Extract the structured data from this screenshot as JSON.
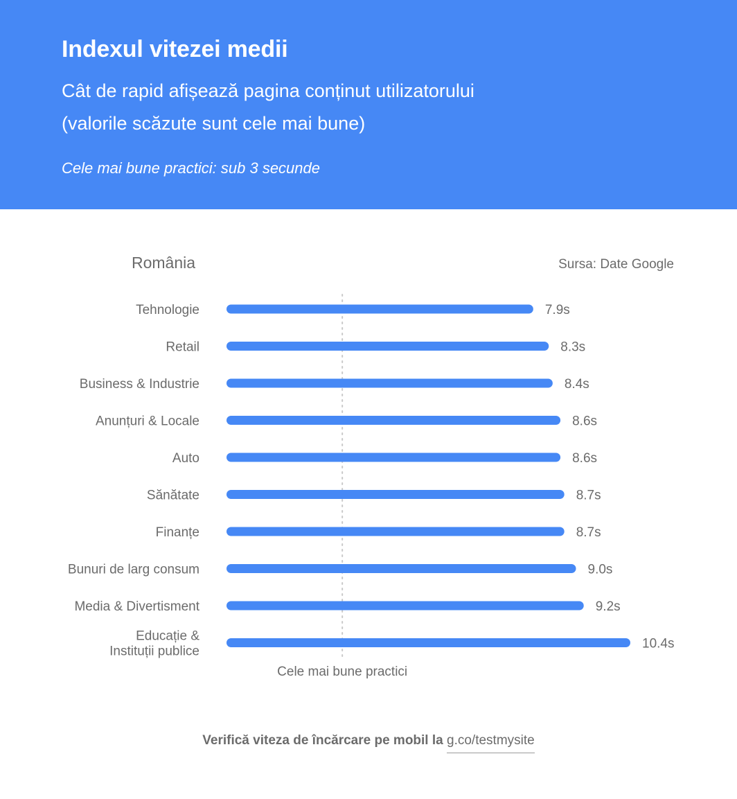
{
  "header": {
    "title": "Indexul vitezei medii",
    "subtitle_line1": "Cât de rapid afișează pagina conținut utilizatorului",
    "subtitle_line2": "(valorile scăzute sunt cele mai bune)",
    "note": "Cele mai bune practici: sub 3 secunde"
  },
  "colors": {
    "header_bg": "#4688f5",
    "bar": "#4688f5",
    "text_gray": "#6b6b6b",
    "dotted_line": "#c8c8c8"
  },
  "chart_data": {
    "type": "bar",
    "orientation": "horizontal",
    "title": "România",
    "source": "Sursa: Date Google",
    "categories": [
      "Tehnologie",
      "Retail",
      "Business & Industrie",
      "Anunțuri & Locale",
      "Auto",
      "Sănătate",
      "Finanțe",
      "Bunuri de larg consum",
      "Media & Divertisment",
      "Educație & Instituții publice"
    ],
    "category_lines": [
      [
        "Tehnologie"
      ],
      [
        "Retail"
      ],
      [
        "Business & Industrie"
      ],
      [
        "Anunțuri & Locale"
      ],
      [
        "Auto"
      ],
      [
        "Sănătate"
      ],
      [
        "Finanțe"
      ],
      [
        "Bunuri de larg consum"
      ],
      [
        "Media & Divertisment"
      ],
      [
        "Educație &",
        "Instituții publice"
      ]
    ],
    "values": [
      7.9,
      8.3,
      8.4,
      8.6,
      8.6,
      8.7,
      8.7,
      9.0,
      9.2,
      10.4
    ],
    "value_labels": [
      "7.9s",
      "8.3s",
      "8.4s",
      "8.6s",
      "8.6s",
      "8.7s",
      "8.7s",
      "9.0s",
      "9.2s",
      "10.4s"
    ],
    "reference_line": {
      "value": 3,
      "label": "Cele mai bune practici"
    },
    "xlim": [
      0,
      10.4
    ],
    "grid": false
  },
  "footer": {
    "lead": "Verifică viteza de încărcare pe mobil la",
    "link": "g.co/testmysite"
  }
}
